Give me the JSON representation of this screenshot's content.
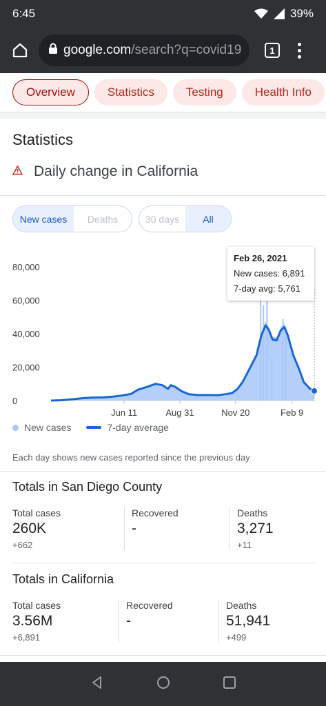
{
  "status_bar": {
    "time": "6:45",
    "battery": "39%"
  },
  "browser": {
    "url_domain": "google.com",
    "url_path": "/search?q=covid19",
    "tab_count": "1"
  },
  "chips": [
    "Overview",
    "Statistics",
    "Testing",
    "Health Info"
  ],
  "section_title": "Statistics",
  "subtitle": "Daily change in California",
  "metric_toggle": {
    "new_cases": "New cases",
    "deaths": "Deaths"
  },
  "range_toggle": {
    "thirty_days": "30 days",
    "all": "All"
  },
  "tooltip": {
    "date": "Feb 26, 2021",
    "new_cases": "New cases: 6,891",
    "avg": "7-day avg: 5,761"
  },
  "legend": {
    "bars": "New cases",
    "line": "7-day average"
  },
  "note": "Each day shows new cases reported since the previous day",
  "san_diego": {
    "title": "Totals in San Diego County",
    "total_label": "Total cases",
    "total_value": "260K",
    "total_delta": "+662",
    "recovered_label": "Recovered",
    "recovered_value": "-",
    "deaths_label": "Deaths",
    "deaths_value": "3,271",
    "deaths_delta": "+11"
  },
  "california": {
    "title": "Totals in California",
    "total_label": "Total cases",
    "total_value": "3.56M",
    "total_delta": "+6,891",
    "recovered_label": "Recovered",
    "recovered_value": "-",
    "deaths_label": "Deaths",
    "deaths_value": "51,941",
    "deaths_delta": "+499"
  },
  "colors": {
    "bars": "#a8c7fa",
    "line": "#1967d2",
    "chip_text": "#b3261e",
    "chip_bg": "#fce8e6"
  },
  "chart_data": {
    "type": "area",
    "ylim": [
      0,
      80000
    ],
    "yticks": [
      "80,000",
      "60,000",
      "40,000",
      "20,000",
      "0"
    ],
    "yvalues": [
      80000,
      60000,
      40000,
      20000,
      0
    ],
    "xticks": [
      "Jun 11",
      "Aug 31",
      "Nov 20",
      "Feb 9"
    ],
    "xtick_day": [
      105,
      185,
      265,
      346
    ],
    "series": [
      {
        "name": "7-day average",
        "points": [
          [
            0,
            0
          ],
          [
            15,
            200
          ],
          [
            30,
            800
          ],
          [
            45,
            1400
          ],
          [
            60,
            1800
          ],
          [
            75,
            1900
          ],
          [
            90,
            2400
          ],
          [
            105,
            3200
          ],
          [
            115,
            4000
          ],
          [
            125,
            6500
          ],
          [
            140,
            8500
          ],
          [
            150,
            10000
          ],
          [
            160,
            9200
          ],
          [
            168,
            7000
          ],
          [
            172,
            9200
          ],
          [
            178,
            8300
          ],
          [
            188,
            5500
          ],
          [
            198,
            3800
          ],
          [
            210,
            3300
          ],
          [
            225,
            3300
          ],
          [
            240,
            3200
          ],
          [
            250,
            3800
          ],
          [
            260,
            4500
          ],
          [
            268,
            7000
          ],
          [
            275,
            11000
          ],
          [
            285,
            19000
          ],
          [
            295,
            27000
          ],
          [
            302,
            39000
          ],
          [
            308,
            45000
          ],
          [
            313,
            42000
          ],
          [
            318,
            36500
          ],
          [
            324,
            36000
          ],
          [
            330,
            42000
          ],
          [
            335,
            44000
          ],
          [
            340,
            39000
          ],
          [
            348,
            27000
          ],
          [
            356,
            19000
          ],
          [
            363,
            11000
          ],
          [
            372,
            7000
          ],
          [
            378,
            5761
          ]
        ]
      }
    ],
    "bar_spikes": [
      [
        301,
        63000
      ],
      [
        305,
        57000
      ],
      [
        310,
        72000
      ],
      [
        317,
        26000
      ],
      [
        333,
        49000
      ],
      [
        337,
        44000
      ]
    ]
  }
}
